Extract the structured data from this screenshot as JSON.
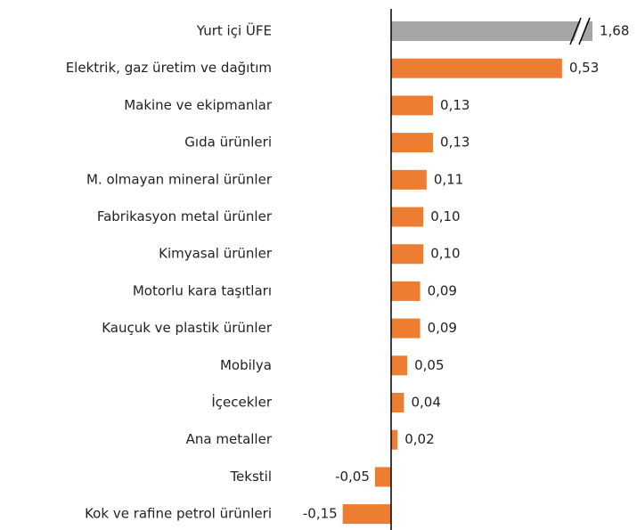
{
  "chart_data": {
    "type": "hbar",
    "categories": [
      "Yurt içi ÜFE",
      "Elektrik, gaz üretim ve dağıtım",
      "Makine ve ekipmanlar",
      "Gıda ürünleri",
      "M. olmayan mineral ürünler",
      "Fabrikasyon metal ürünler",
      "Kimyasal ürünler",
      "Motorlu kara taşıtları",
      "Kauçuk ve plastik ürünler",
      "Mobilya",
      "İçecekler",
      "Ana metaller",
      "Tekstil",
      "Kok ve rafine petrol ürünleri"
    ],
    "values": [
      1.68,
      0.53,
      0.13,
      0.13,
      0.11,
      0.1,
      0.1,
      0.09,
      0.09,
      0.05,
      0.04,
      0.02,
      -0.05,
      -0.15
    ],
    "value_labels": [
      "1,68",
      "0,53",
      "0,13",
      "0,13",
      "0,11",
      "0,10",
      "0,10",
      "0,09",
      "0,09",
      "0,05",
      "0,04",
      "0,02",
      "-0,05",
      "-0,15"
    ],
    "colors": [
      "#a6a6a6",
      "#ed7d31",
      "#ed7d31",
      "#ed7d31",
      "#ed7d31",
      "#ed7d31",
      "#ed7d31",
      "#ed7d31",
      "#ed7d31",
      "#ed7d31",
      "#ed7d31",
      "#ed7d31",
      "#ed7d31",
      "#ed7d31"
    ],
    "xlim": [
      -0.2,
      0.75
    ]
  }
}
